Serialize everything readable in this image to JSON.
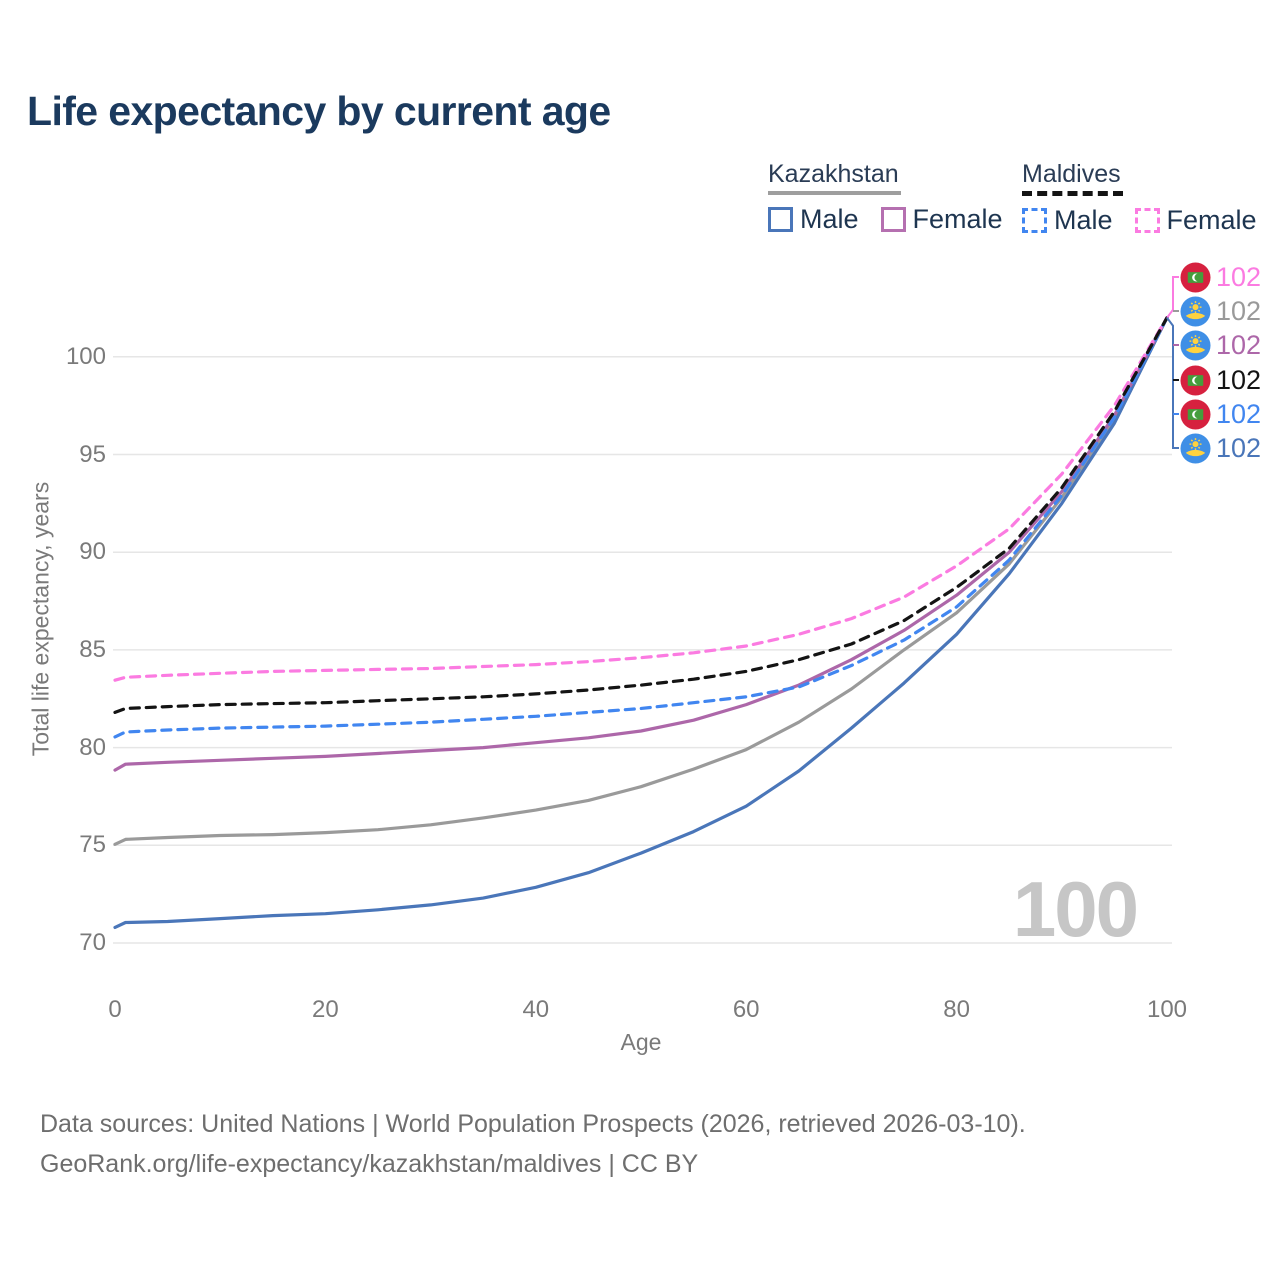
{
  "page": {
    "title": "Life expectancy by current age",
    "footer_line1": "Data sources: United Nations | World Population Prospects (2026, retrieved 2026-03-10).",
    "footer_line2": "GeoRank.org/life-expectancy/kazakhstan/maldives | CC BY"
  },
  "legend": {
    "groups": [
      {
        "label": "Kazakhstan",
        "line_style": "solid",
        "underline_color": "#9e9e9e",
        "items": [
          {
            "label": "Male",
            "color": "#4a76b9"
          },
          {
            "label": "Female",
            "color": "#b570b0"
          }
        ]
      },
      {
        "label": "Maldives",
        "line_style": "dashed",
        "underline_color": "#141414",
        "items": [
          {
            "label": "Male",
            "color": "#4186f0"
          },
          {
            "label": "Female",
            "color": "#fb7be1"
          }
        ]
      }
    ]
  },
  "chart_data": {
    "type": "line",
    "title": "Life expectancy by current age",
    "xlabel": "Age",
    "ylabel": "Total life expectancy, years",
    "xlim": [
      0,
      100
    ],
    "ylim": [
      70,
      102.5
    ],
    "xticks": [
      0,
      20,
      40,
      60,
      80,
      100
    ],
    "yticks": [
      70,
      75,
      80,
      85,
      90,
      95,
      100
    ],
    "grid": "horizontal",
    "watermark": "100",
    "x": [
      0,
      1,
      5,
      10,
      15,
      20,
      25,
      30,
      35,
      40,
      45,
      50,
      55,
      60,
      65,
      70,
      75,
      80,
      85,
      90,
      95,
      100
    ],
    "series": [
      {
        "key": "kz_total",
        "country": "Kazakhstan",
        "group": "both",
        "color": "#9a9a9a",
        "dash": false,
        "values": [
          75.05,
          75.3,
          75.4,
          75.5,
          75.55,
          75.65,
          75.8,
          76.05,
          76.4,
          76.8,
          77.3,
          78.0,
          78.9,
          79.9,
          81.3,
          83.0,
          85.0,
          86.9,
          89.4,
          92.8,
          96.8,
          102
        ]
      },
      {
        "key": "kz_male",
        "country": "Kazakhstan",
        "group": "Male",
        "color": "#4a76b9",
        "dash": false,
        "values": [
          70.8,
          71.05,
          71.1,
          71.25,
          71.4,
          71.5,
          71.7,
          71.95,
          72.3,
          72.85,
          73.6,
          74.6,
          75.7,
          77.0,
          78.8,
          81.0,
          83.3,
          85.8,
          88.9,
          92.5,
          96.6,
          102
        ]
      },
      {
        "key": "kz_female",
        "country": "Kazakhstan",
        "group": "Female",
        "color": "#ad67a9",
        "dash": false,
        "values": [
          78.85,
          79.15,
          79.25,
          79.35,
          79.45,
          79.55,
          79.7,
          79.85,
          80.0,
          80.25,
          80.5,
          80.85,
          81.4,
          82.2,
          83.2,
          84.5,
          86.0,
          87.8,
          90.0,
          93.1,
          97.0,
          102
        ]
      },
      {
        "key": "mv_male",
        "country": "Maldives",
        "group": "Male",
        "color": "#4186f0",
        "dash": true,
        "values": [
          80.55,
          80.8,
          80.9,
          81.0,
          81.05,
          81.1,
          81.2,
          81.3,
          81.45,
          81.6,
          81.8,
          82.0,
          82.3,
          82.6,
          83.1,
          84.2,
          85.5,
          87.2,
          89.6,
          92.9,
          96.9,
          102
        ]
      },
      {
        "key": "mv_female",
        "country": "Maldives",
        "group": "Female",
        "color": "#fb7be1",
        "dash": true,
        "values": [
          83.45,
          83.6,
          83.7,
          83.8,
          83.9,
          83.95,
          84.0,
          84.05,
          84.15,
          84.25,
          84.4,
          84.6,
          84.85,
          85.2,
          85.8,
          86.6,
          87.7,
          89.3,
          91.2,
          94.0,
          97.5,
          102
        ]
      },
      {
        "key": "mv_total",
        "country": "Maldives",
        "group": "both",
        "color": "#141414",
        "dash": true,
        "values": [
          81.8,
          82.0,
          82.1,
          82.2,
          82.25,
          82.3,
          82.4,
          82.5,
          82.6,
          82.75,
          82.95,
          83.2,
          83.5,
          83.9,
          84.5,
          85.3,
          86.5,
          88.2,
          90.2,
          93.3,
          97.2,
          102
        ]
      }
    ],
    "end_labels": [
      {
        "flag": "maldives",
        "value": "102",
        "color": "#fb7be1"
      },
      {
        "flag": "kazakhstan",
        "value": "102",
        "color": "#9a9a9a"
      },
      {
        "flag": "kazakhstan",
        "value": "102",
        "color": "#ad67a9"
      },
      {
        "flag": "maldives",
        "value": "102",
        "color": "#141414"
      },
      {
        "flag": "maldives",
        "value": "102",
        "color": "#4186f0"
      },
      {
        "flag": "kazakhstan",
        "value": "102",
        "color": "#4a76b9"
      }
    ]
  }
}
